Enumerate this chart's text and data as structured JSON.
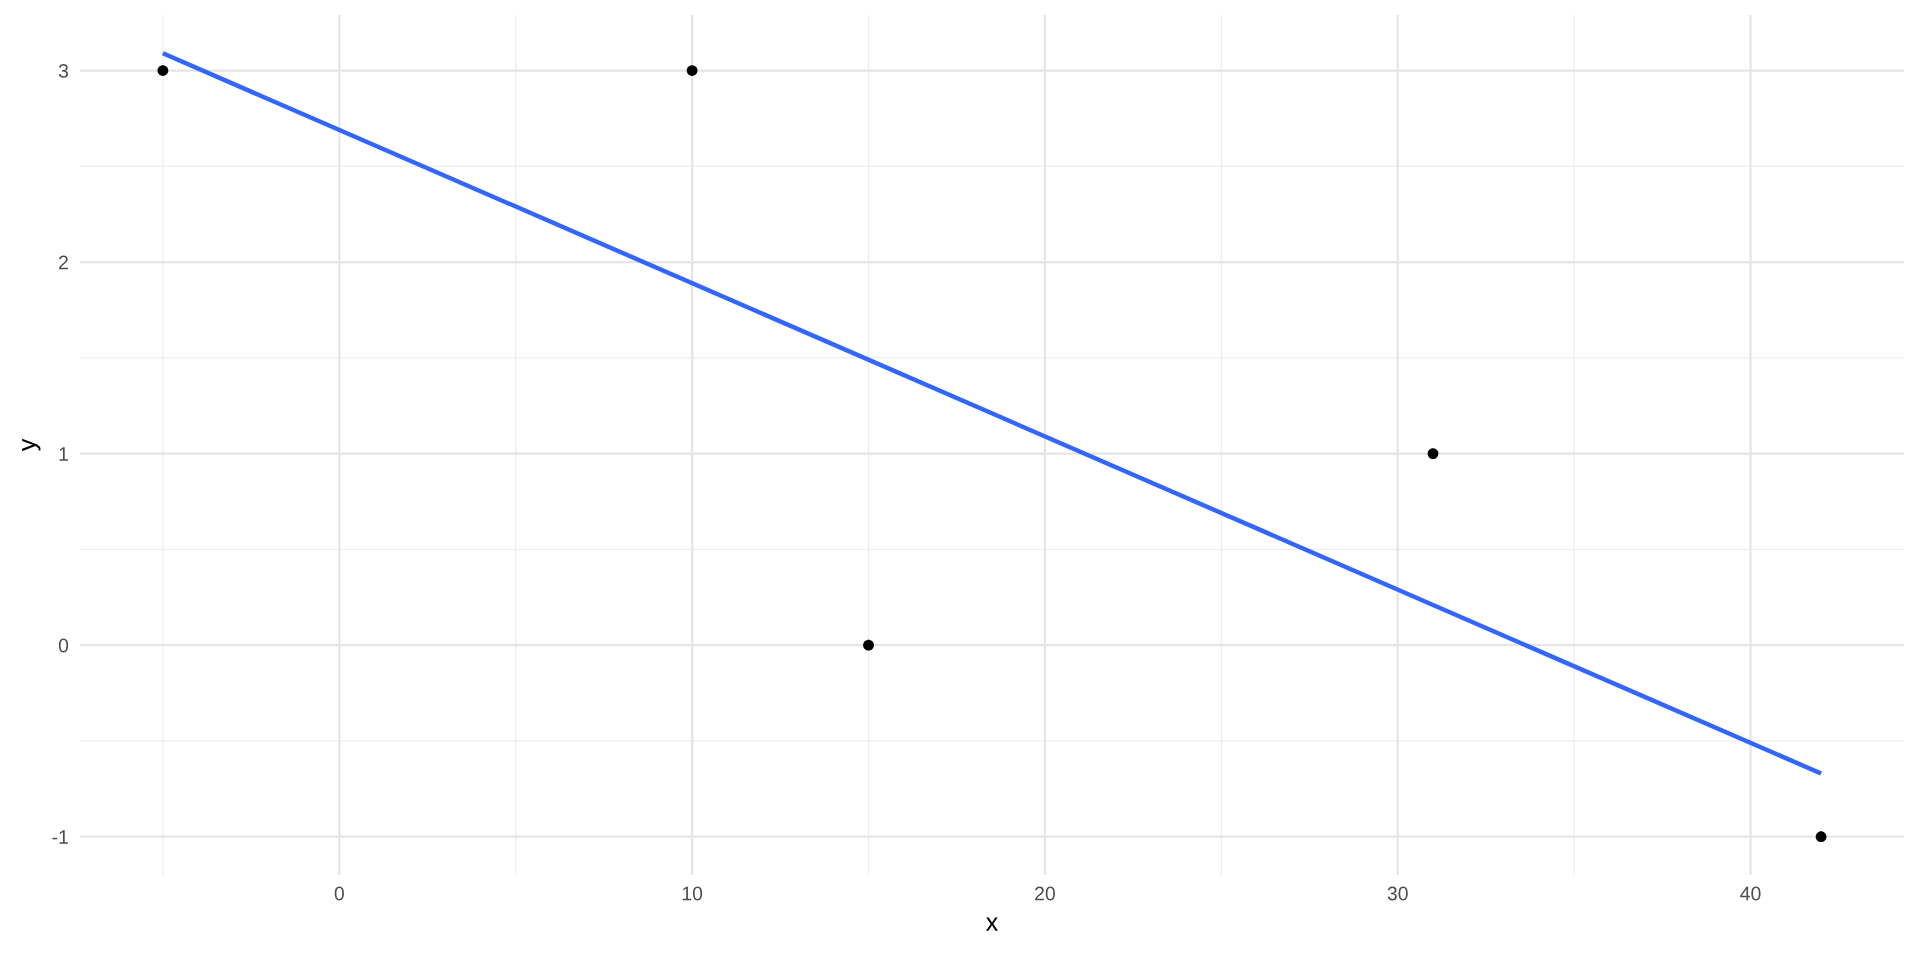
{
  "chart_data": {
    "type": "scatter",
    "xlabel": "x",
    "ylabel": "y",
    "xlim": [
      -7.35,
      44.35
    ],
    "ylim": [
      -1.2,
      3.29
    ],
    "xticks": [
      0,
      10,
      20,
      30,
      40
    ],
    "yticks": [
      -1,
      0,
      1,
      2,
      3
    ],
    "grid": true,
    "series": [
      {
        "marker": "circle",
        "color": "#000000",
        "x": [
          -5,
          10,
          15,
          31,
          42
        ],
        "values": [
          3,
          3,
          0,
          1,
          -1
        ]
      },
      {
        "type": "line",
        "color": "#3366ff",
        "line_style": "solid",
        "marker": "none",
        "x": [
          -5,
          42
        ],
        "values": [
          3.09,
          -0.67
        ]
      }
    ]
  }
}
